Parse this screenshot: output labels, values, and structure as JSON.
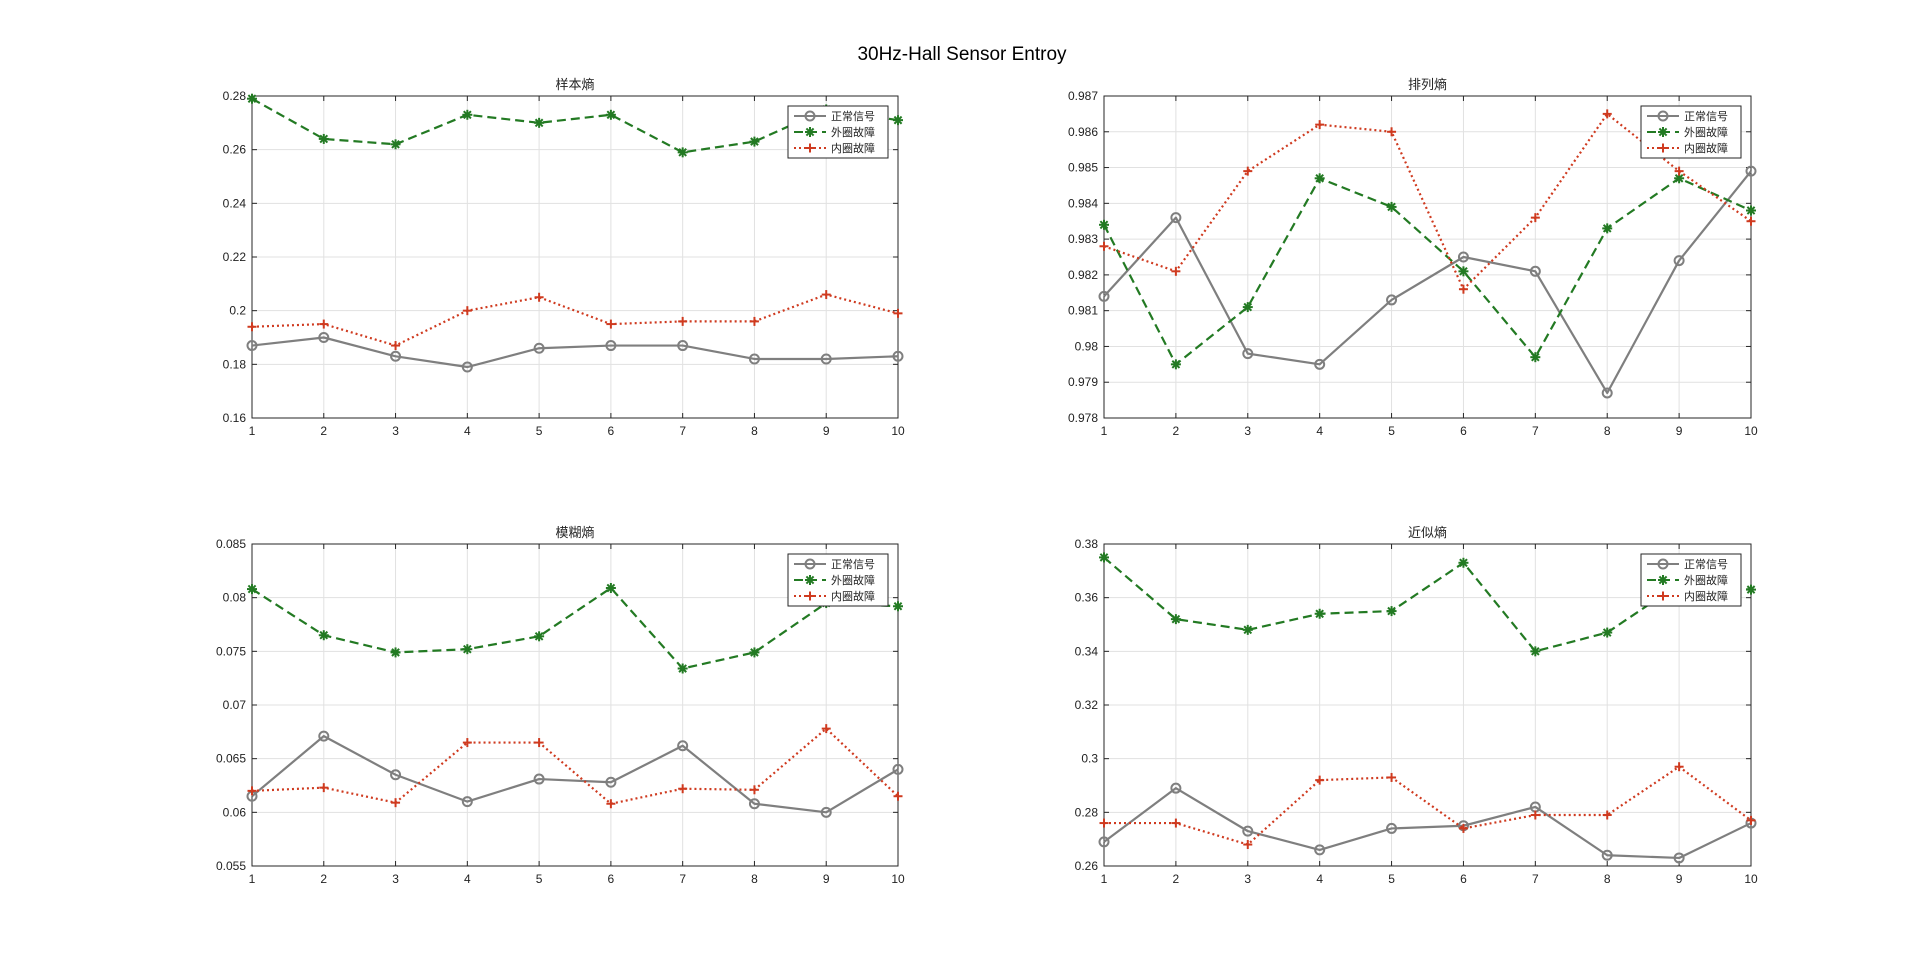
{
  "figure_title": "30Hz-Hall Sensor Entroy",
  "legend_labels": [
    "正常信号",
    "外圈故障",
    "内圈故障"
  ],
  "colors": {
    "normal": "#7f7f7f",
    "outer": "#237a23",
    "inner": "#cf3a1f"
  },
  "chart_data": [
    {
      "type": "line",
      "title": "样本熵",
      "x": [
        1,
        2,
        3,
        4,
        5,
        6,
        7,
        8,
        9,
        10
      ],
      "ylim": [
        0.16,
        0.28
      ],
      "yticks": [
        0.16,
        0.18,
        0.2,
        0.22,
        0.24,
        0.26,
        0.28
      ],
      "ytick_labels": [
        "0.16",
        "0.18",
        "0.2",
        "0.22",
        "0.24",
        "0.26",
        "0.28"
      ],
      "grid": true,
      "legend_position": "top-right",
      "series": [
        {
          "name": "正常信号",
          "values": [
            0.187,
            0.19,
            0.183,
            0.179,
            0.186,
            0.187,
            0.187,
            0.182,
            0.182,
            0.183
          ]
        },
        {
          "name": "外圈故障",
          "values": [
            0.279,
            0.264,
            0.262,
            0.273,
            0.27,
            0.273,
            0.259,
            0.263,
            0.275,
            0.271
          ]
        },
        {
          "name": "内圈故障",
          "values": [
            0.194,
            0.195,
            0.187,
            0.2,
            0.205,
            0.195,
            0.196,
            0.196,
            0.206,
            0.199
          ]
        }
      ]
    },
    {
      "type": "line",
      "title": "排列熵",
      "x": [
        1,
        2,
        3,
        4,
        5,
        6,
        7,
        8,
        9,
        10
      ],
      "ylim": [
        0.978,
        0.987
      ],
      "yticks": [
        0.978,
        0.979,
        0.98,
        0.981,
        0.982,
        0.983,
        0.984,
        0.985,
        0.986,
        0.987
      ],
      "ytick_labels": [
        "0.978",
        "0.979",
        "0.98",
        "0.981",
        "0.982",
        "0.983",
        "0.984",
        "0.985",
        "0.986",
        "0.987"
      ],
      "grid": true,
      "legend_position": "top-right",
      "series": [
        {
          "name": "正常信号",
          "values": [
            0.9814,
            0.9836,
            0.9798,
            0.9795,
            0.9813,
            0.9825,
            0.9821,
            0.9787,
            0.9824,
            0.9849
          ]
        },
        {
          "name": "外圈故障",
          "values": [
            0.9834,
            0.9795,
            0.9811,
            0.9847,
            0.9839,
            0.9821,
            0.9797,
            0.9833,
            0.9847,
            0.9838
          ]
        },
        {
          "name": "内圈故障",
          "values": [
            0.9828,
            0.9821,
            0.9849,
            0.9862,
            0.986,
            0.9816,
            0.9836,
            0.9865,
            0.9849,
            0.9835
          ]
        }
      ]
    },
    {
      "type": "line",
      "title": "模糊熵",
      "x": [
        1,
        2,
        3,
        4,
        5,
        6,
        7,
        8,
        9,
        10
      ],
      "ylim": [
        0.055,
        0.085
      ],
      "yticks": [
        0.055,
        0.06,
        0.065,
        0.07,
        0.075,
        0.08,
        0.085
      ],
      "ytick_labels": [
        "0.055",
        "0.06",
        "0.065",
        "0.07",
        "0.075",
        "0.08",
        "0.085"
      ],
      "grid": true,
      "legend_position": "top-right",
      "series": [
        {
          "name": "正常信号",
          "values": [
            0.0615,
            0.0671,
            0.0635,
            0.061,
            0.0631,
            0.0628,
            0.0662,
            0.0608,
            0.06,
            0.064
          ]
        },
        {
          "name": "外圈故障",
          "values": [
            0.0808,
            0.0765,
            0.0749,
            0.0752,
            0.0764,
            0.0809,
            0.0734,
            0.0749,
            0.0795,
            0.0792
          ]
        },
        {
          "name": "内圈故障",
          "values": [
            0.062,
            0.0623,
            0.0609,
            0.0665,
            0.0665,
            0.0608,
            0.0622,
            0.0621,
            0.0678,
            0.0615
          ]
        }
      ]
    },
    {
      "type": "line",
      "title": "近似熵",
      "x": [
        1,
        2,
        3,
        4,
        5,
        6,
        7,
        8,
        9,
        10
      ],
      "ylim": [
        0.26,
        0.38
      ],
      "yticks": [
        0.26,
        0.28,
        0.3,
        0.32,
        0.34,
        0.36,
        0.38
      ],
      "ytick_labels": [
        "0.26",
        "0.28",
        "0.3",
        "0.32",
        "0.34",
        "0.36",
        "0.38"
      ],
      "grid": true,
      "legend_position": "top-right",
      "series": [
        {
          "name": "正常信号",
          "values": [
            0.269,
            0.289,
            0.273,
            0.266,
            0.274,
            0.275,
            0.282,
            0.264,
            0.263,
            0.276
          ]
        },
        {
          "name": "外圈故障",
          "values": [
            0.375,
            0.352,
            0.348,
            0.354,
            0.355,
            0.373,
            0.34,
            0.347,
            0.365,
            0.363
          ]
        },
        {
          "name": "内圈故障",
          "values": [
            0.276,
            0.276,
            0.268,
            0.292,
            0.293,
            0.274,
            0.279,
            0.279,
            0.297,
            0.277
          ]
        }
      ]
    }
  ]
}
